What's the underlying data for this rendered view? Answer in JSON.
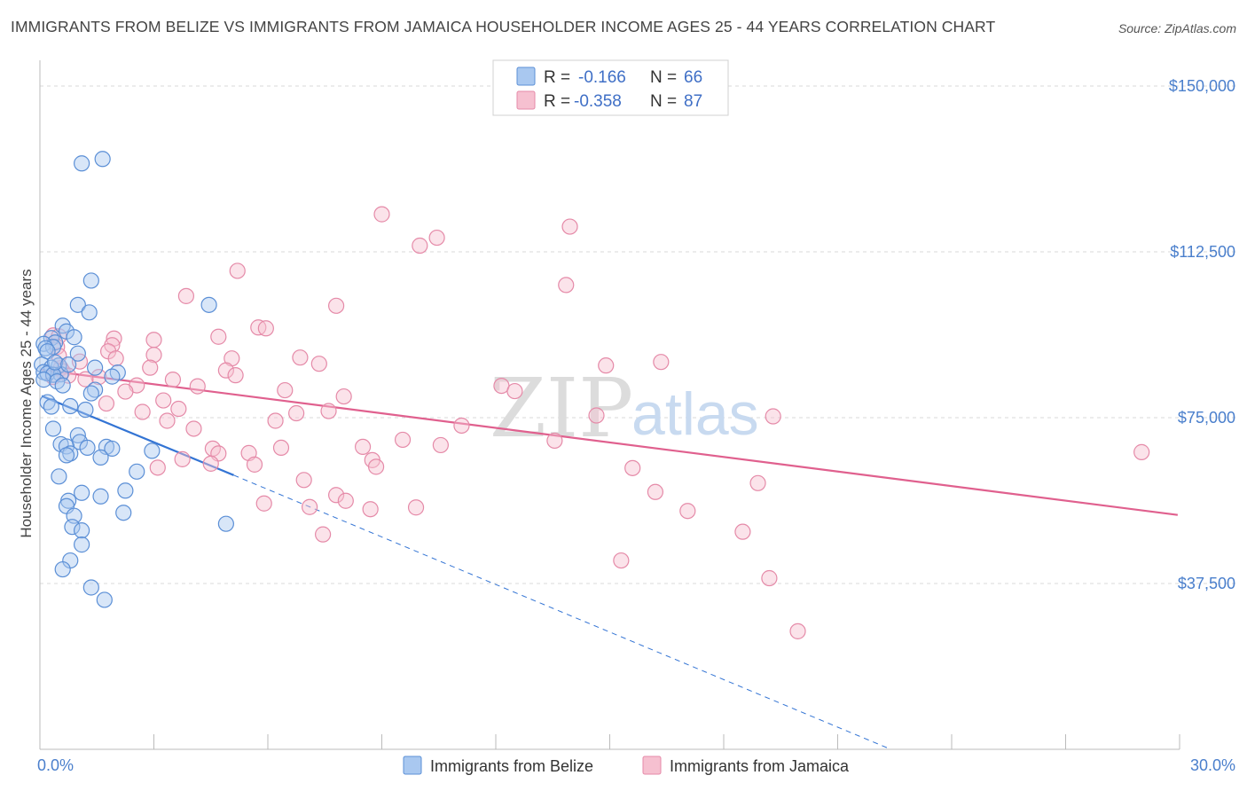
{
  "header": {
    "title": "IMMIGRANTS FROM BELIZE VS IMMIGRANTS FROM JAMAICA HOUSEHOLDER INCOME AGES 25 - 44 YEARS CORRELATION CHART",
    "source": "Source: ZipAtlas.com"
  },
  "legend": {
    "belize": {
      "r_label": "R =",
      "r_value": "-0.166",
      "n_label": "N =",
      "n_value": "66"
    },
    "jamaica": {
      "r_label": "R =",
      "r_value": "-0.358",
      "n_label": "N =",
      "n_value": "87"
    }
  },
  "watermark": {
    "zip": "ZIP",
    "atlas": "atlas"
  },
  "colors": {
    "belize_fill": "#a9c8f0",
    "belize_stroke": "#5b8fd6",
    "belize_line": "#3374d4",
    "jamaica_fill": "#f6c0d0",
    "jamaica_stroke": "#e58aa8",
    "jamaica_line": "#e0608e",
    "grid": "#d9d9d9",
    "axis_text": "#4a7fcc"
  },
  "chart_data": {
    "type": "scatter",
    "title": "IMMIGRANTS FROM BELIZE VS IMMIGRANTS FROM JAMAICA HOUSEHOLDER INCOME AGES 25 - 44 YEARS CORRELATION CHART",
    "xlabel": "",
    "ylabel": "Householder Income Ages 25 - 44 years",
    "xlim": [
      0,
      30
    ],
    "ylim": [
      0,
      155000
    ],
    "x_tick_labels": [
      "0.0%",
      "30.0%"
    ],
    "y_ticks": [
      37500,
      75000,
      112500,
      150000
    ],
    "y_tick_labels": [
      "$37,500",
      "$75,000",
      "$112,500",
      "$150,000"
    ],
    "grid": true,
    "legend_position": "bottom-center",
    "series": [
      {
        "name": "Immigrants from Belize",
        "r": -0.166,
        "n": 66,
        "trend": {
          "x": [
            0.05,
            5.1
          ],
          "y": [
            79900,
            62000
          ],
          "dashed_extension_to": [
            22.4,
            0
          ]
        },
        "points": [
          [
            1.1,
            132500
          ],
          [
            1.65,
            133500
          ],
          [
            1.35,
            106000
          ],
          [
            1.0,
            100500
          ],
          [
            4.45,
            100500
          ],
          [
            1.3,
            98800
          ],
          [
            0.6,
            95800
          ],
          [
            0.7,
            94500
          ],
          [
            0.9,
            93200
          ],
          [
            0.3,
            93000
          ],
          [
            0.4,
            92000
          ],
          [
            0.1,
            91700
          ],
          [
            0.35,
            91000
          ],
          [
            0.15,
            90700
          ],
          [
            0.2,
            90000
          ],
          [
            1.0,
            89500
          ],
          [
            0.05,
            87000
          ],
          [
            0.5,
            86800
          ],
          [
            0.3,
            86300
          ],
          [
            1.45,
            86300
          ],
          [
            0.1,
            85300
          ],
          [
            0.2,
            85000
          ],
          [
            0.55,
            84800
          ],
          [
            0.35,
            84700
          ],
          [
            2.05,
            85200
          ],
          [
            1.9,
            84300
          ],
          [
            0.1,
            83600
          ],
          [
            0.45,
            83200
          ],
          [
            0.6,
            82300
          ],
          [
            1.45,
            81300
          ],
          [
            1.35,
            80500
          ],
          [
            0.2,
            78500
          ],
          [
            0.3,
            77500
          ],
          [
            0.8,
            77600
          ],
          [
            1.2,
            76800
          ],
          [
            0.35,
            72500
          ],
          [
            1.0,
            71000
          ],
          [
            1.05,
            69500
          ],
          [
            0.55,
            69000
          ],
          [
            0.7,
            68500
          ],
          [
            1.75,
            68400
          ],
          [
            1.25,
            68200
          ],
          [
            1.9,
            68000
          ],
          [
            2.95,
            67500
          ],
          [
            0.8,
            66900
          ],
          [
            0.7,
            66500
          ],
          [
            1.6,
            66000
          ],
          [
            2.55,
            62800
          ],
          [
            0.5,
            61700
          ],
          [
            2.25,
            58500
          ],
          [
            1.1,
            58000
          ],
          [
            1.6,
            57200
          ],
          [
            0.75,
            56200
          ],
          [
            0.7,
            55000
          ],
          [
            2.2,
            53500
          ],
          [
            0.9,
            52800
          ],
          [
            4.9,
            51000
          ],
          [
            0.85,
            50300
          ],
          [
            1.1,
            49500
          ],
          [
            1.1,
            46300
          ],
          [
            0.8,
            42700
          ],
          [
            0.6,
            40700
          ],
          [
            1.35,
            36600
          ],
          [
            1.7,
            33800
          ],
          [
            0.4,
            87500
          ],
          [
            0.75,
            87000
          ]
        ]
      },
      {
        "name": "Immigrants from Jamaica",
        "r": -0.358,
        "n": 87,
        "trend": {
          "x": [
            0.05,
            29.95
          ],
          "y": [
            85800,
            53000
          ]
        },
        "points": [
          [
            9.0,
            121000
          ],
          [
            13.95,
            118200
          ],
          [
            10.45,
            115700
          ],
          [
            10.0,
            113900
          ],
          [
            5.2,
            108200
          ],
          [
            13.85,
            105000
          ],
          [
            3.85,
            102500
          ],
          [
            7.8,
            100300
          ],
          [
            5.75,
            95400
          ],
          [
            5.95,
            95200
          ],
          [
            4.7,
            93300
          ],
          [
            1.95,
            92900
          ],
          [
            3.0,
            92600
          ],
          [
            0.35,
            93600
          ],
          [
            0.5,
            93400
          ],
          [
            1.9,
            91400
          ],
          [
            0.45,
            91000
          ],
          [
            1.8,
            90000
          ],
          [
            3.0,
            89200
          ],
          [
            2.0,
            88400
          ],
          [
            6.85,
            88600
          ],
          [
            5.05,
            88400
          ],
          [
            16.35,
            87600
          ],
          [
            7.35,
            87200
          ],
          [
            14.9,
            86800
          ],
          [
            2.9,
            86300
          ],
          [
            4.9,
            85700
          ],
          [
            0.55,
            86200
          ],
          [
            0.6,
            85500
          ],
          [
            0.75,
            84500
          ],
          [
            1.55,
            84200
          ],
          [
            1.2,
            83700
          ],
          [
            3.5,
            83600
          ],
          [
            5.15,
            84600
          ],
          [
            2.55,
            82300
          ],
          [
            4.15,
            82100
          ],
          [
            12.15,
            82200
          ],
          [
            6.45,
            81200
          ],
          [
            12.5,
            81000
          ],
          [
            2.25,
            80900
          ],
          [
            8.0,
            79800
          ],
          [
            3.25,
            78900
          ],
          [
            1.75,
            78200
          ],
          [
            3.65,
            77000
          ],
          [
            2.7,
            76300
          ],
          [
            6.75,
            76000
          ],
          [
            7.6,
            76500
          ],
          [
            14.65,
            75500
          ],
          [
            19.3,
            75300
          ],
          [
            6.2,
            74300
          ],
          [
            3.35,
            74300
          ],
          [
            11.1,
            73200
          ],
          [
            4.05,
            72500
          ],
          [
            9.55,
            70000
          ],
          [
            13.55,
            69800
          ],
          [
            10.55,
            68800
          ],
          [
            8.5,
            68400
          ],
          [
            6.35,
            68200
          ],
          [
            4.55,
            68000
          ],
          [
            4.7,
            66900
          ],
          [
            5.5,
            67000
          ],
          [
            3.75,
            65600
          ],
          [
            8.75,
            65400
          ],
          [
            4.5,
            64600
          ],
          [
            5.65,
            64400
          ],
          [
            8.85,
            63900
          ],
          [
            3.1,
            63700
          ],
          [
            15.6,
            63600
          ],
          [
            29.0,
            67200
          ],
          [
            6.95,
            60900
          ],
          [
            18.9,
            60200
          ],
          [
            16.2,
            58200
          ],
          [
            7.8,
            57500
          ],
          [
            8.05,
            56200
          ],
          [
            5.9,
            55600
          ],
          [
            7.1,
            54800
          ],
          [
            9.9,
            54700
          ],
          [
            8.7,
            54300
          ],
          [
            17.05,
            53900
          ],
          [
            18.5,
            49200
          ],
          [
            7.45,
            48600
          ],
          [
            15.3,
            42700
          ],
          [
            19.2,
            38700
          ],
          [
            19.95,
            26700
          ],
          [
            0.5,
            89000
          ],
          [
            0.35,
            84200
          ],
          [
            1.05,
            87700
          ]
        ]
      }
    ]
  },
  "bottom_legend": {
    "belize": "Immigrants from Belize",
    "jamaica": "Immigrants from Jamaica"
  }
}
